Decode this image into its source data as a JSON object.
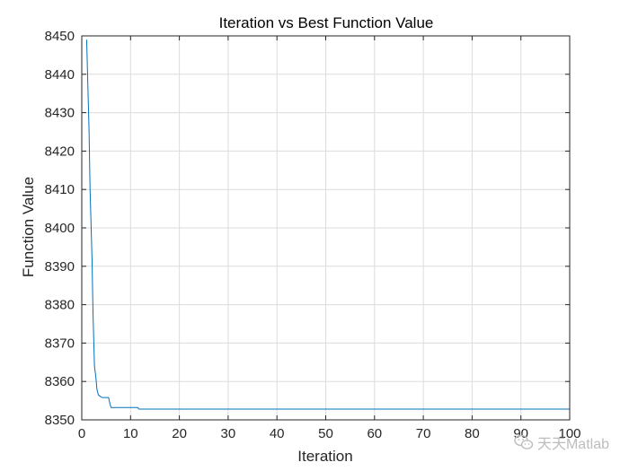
{
  "chart_data": {
    "type": "line",
    "title": "Iteration vs Best Function Value",
    "xlabel": "Iteration",
    "ylabel": "Function Value",
    "xlim": [
      0,
      100
    ],
    "ylim": [
      8350,
      8450
    ],
    "xticks": [
      0,
      10,
      20,
      30,
      40,
      50,
      60,
      70,
      80,
      90,
      100
    ],
    "yticks": [
      8350,
      8360,
      8370,
      8380,
      8390,
      8400,
      8410,
      8420,
      8430,
      8440,
      8450
    ],
    "grid": true,
    "line_color": "#0072BD",
    "series": [
      {
        "x": [
          1,
          1.5,
          1.7,
          2.1,
          2.3,
          2.6,
          2.9,
          3.1,
          3.4,
          3.9,
          4.2,
          5.5,
          5.8,
          6.0,
          11.5,
          11.7,
          100
        ],
        "y": [
          8449,
          8425,
          8410,
          8392,
          8378,
          8364,
          8361,
          8358,
          8356.5,
          8356,
          8355.8,
          8355.8,
          8354,
          8353.2,
          8353.2,
          8352.8,
          8352.8
        ]
      }
    ]
  },
  "watermark": {
    "text": "天天Matlab",
    "icon": "wechat-icon"
  }
}
